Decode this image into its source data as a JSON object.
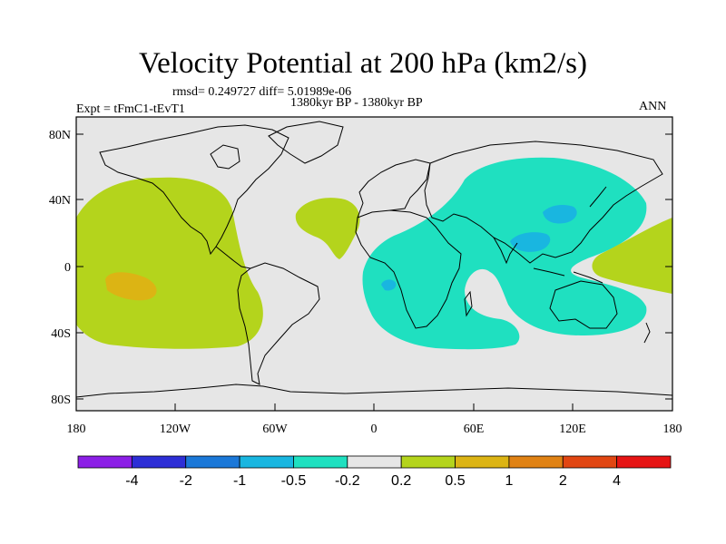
{
  "title": "Velocity Potential at 200 hPa (km2/s)",
  "stats": "rmsd= 0.249727 diff= 5.01989e-06",
  "period": "1380kyr BP - 1380kyr BP",
  "experiment": "Expt = tFmC1-tEvT1",
  "season": "ANN",
  "lat_ticks": [
    "80N",
    "40N",
    "0",
    "40S",
    "80S"
  ],
  "lon_ticks": [
    "180",
    "120W",
    "60W",
    "0",
    "60E",
    "120E",
    "180"
  ],
  "colorbar": {
    "labels": [
      "-4",
      "-2",
      "-1",
      "-0.5",
      "-0.2",
      "0.2",
      "0.5",
      "1",
      "2",
      "4"
    ],
    "colors": [
      "#8c1fe6",
      "#2d2ed6",
      "#1b78d8",
      "#19b6e0",
      "#1fe0c0",
      "#e6e6e6",
      "#b4d41c",
      "#dcb414",
      "#e08214",
      "#e14612",
      "#e61414"
    ]
  },
  "colors": {
    "ocean_bg": "#e6e6e6",
    "positive_weak": "#b4d41c",
    "positive_mid": "#dcb414",
    "negative_weak": "#1fe0c0",
    "negative_mid": "#19b6e0"
  }
}
